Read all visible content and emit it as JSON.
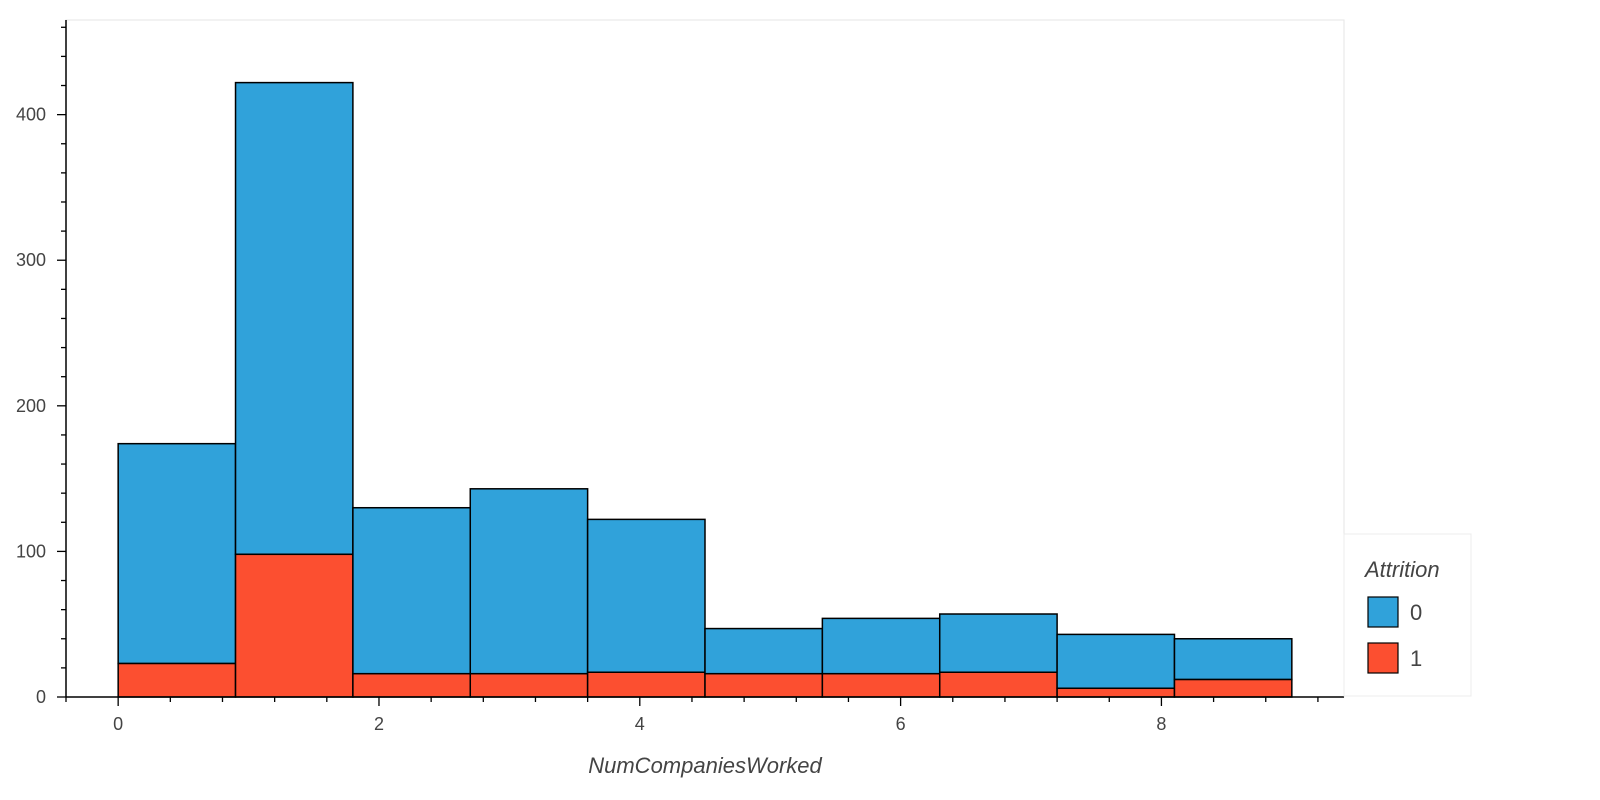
{
  "chart_data": {
    "type": "bar",
    "stacked": true,
    "xlabel": "NumCompaniesWorked",
    "ylabel": "",
    "bin_edges": [
      0,
      0.9,
      1.8,
      2.7,
      3.6,
      4.5,
      5.4,
      6.3,
      7.2,
      8.1,
      9.0
    ],
    "xlim": [
      -0.4,
      9.4
    ],
    "ylim": [
      0,
      465
    ],
    "x_ticks": [
      0,
      2,
      4,
      6,
      8
    ],
    "y_ticks": [
      0,
      100,
      200,
      300,
      400
    ],
    "legend": {
      "title": "Attrition",
      "position": "right",
      "entries": [
        "0",
        "1"
      ]
    },
    "series": [
      {
        "name": "0",
        "color": "#30a2da",
        "values": [
          151,
          324,
          114,
          127,
          105,
          31,
          38,
          40,
          37,
          28
        ]
      },
      {
        "name": "1",
        "color": "#fc4f30",
        "values": [
          23,
          98,
          16,
          16,
          17,
          16,
          16,
          17,
          6,
          12
        ]
      }
    ]
  }
}
